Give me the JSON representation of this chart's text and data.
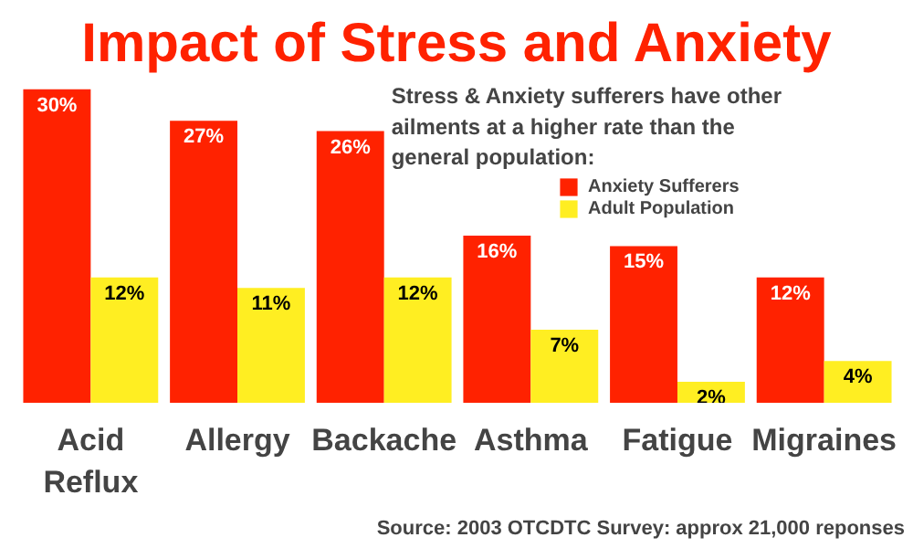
{
  "chart_data": {
    "type": "bar",
    "title": "Impact of Stress and Anxiety",
    "subtitle": "Stress & Anxiety sufferers have other ailments at a higher rate than the general population:",
    "categories": [
      "Acid Reflux",
      "Allergy",
      "Backache",
      "Asthma",
      "Fatigue",
      "Migraines"
    ],
    "series": [
      {
        "name": "Anxiety Sufferers",
        "color": "#ff2200",
        "values": [
          30,
          27,
          26,
          16,
          15,
          12
        ],
        "value_labels": [
          "30%",
          "27%",
          "26%",
          "16%",
          "15%",
          "12%"
        ]
      },
      {
        "name": "Adult Population",
        "color": "#ffee22",
        "values": [
          12,
          11,
          12,
          7,
          2,
          4
        ],
        "value_labels": [
          "12%",
          "11%",
          "12%",
          "7%",
          "2%",
          "4%"
        ]
      }
    ],
    "tick_labels": "x",
    "legend": "right",
    "grid": false,
    "annotations": [
      "Source: 2003 OTCDTC Survey: approx 21,000 reponses"
    ]
  }
}
